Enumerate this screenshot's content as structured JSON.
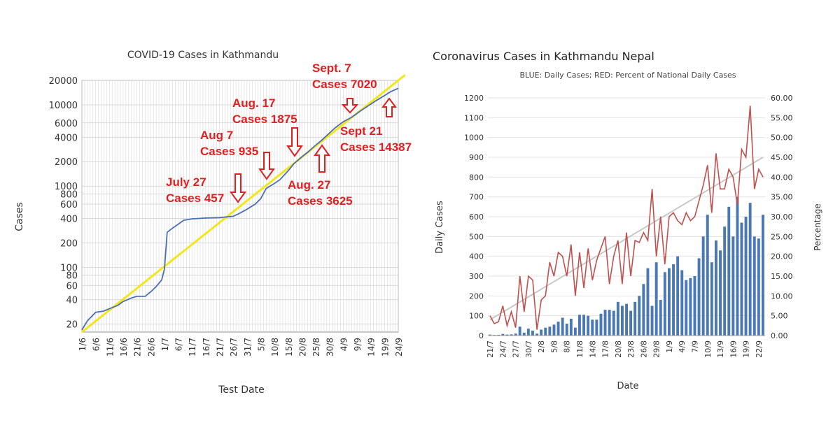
{
  "chart_data": [
    {
      "type": "line",
      "title": "COVID-19 Cases in Kathmandu",
      "xlabel": "Test Date",
      "ylabel": "Cases",
      "y_scale": "log",
      "ylim": [
        16,
        20000
      ],
      "y_ticks": [
        20,
        40,
        60,
        80,
        100,
        200,
        400,
        600,
        800,
        1000,
        2000,
        4000,
        6000,
        10000,
        20000
      ],
      "x_tick_labels": [
        "1/6",
        "6/6",
        "11/6",
        "16/6",
        "21/6",
        "26/6",
        "1/7",
        "6/7",
        "11/7",
        "16/7",
        "21/7",
        "26/7",
        "31/7",
        "5/8",
        "10/8",
        "15/8",
        "20/8",
        "25/8",
        "30/8",
        "4/9",
        "9/9",
        "14/9",
        "19/9",
        "24/9"
      ],
      "grid": true,
      "series": [
        {
          "color": "#4a6fb5",
          "x": [
            "1/6",
            "3/6",
            "6/6",
            "9/6",
            "11/6",
            "14/6",
            "16/6",
            "19/6",
            "21/6",
            "24/6",
            "26/6",
            "28/6",
            "30/6",
            "1/7",
            "2/7",
            "4/7",
            "6/7",
            "8/7",
            "11/7",
            "16/7",
            "21/7",
            "26/7",
            "28/7",
            "31/7",
            "3/8",
            "5/8",
            "7/8",
            "10/8",
            "12/8",
            "15/8",
            "17/8",
            "20/8",
            "22/8",
            "25/8",
            "27/8",
            "30/8",
            "1/9",
            "4/9",
            "7/9",
            "10/9",
            "13/9",
            "16/9",
            "19/9",
            "21/9",
            "24/9"
          ],
          "values": [
            17,
            22,
            28,
            29,
            31,
            34,
            38,
            42,
            44,
            44,
            50,
            58,
            70,
            95,
            270,
            305,
            340,
            380,
            395,
            405,
            410,
            425,
            457,
            520,
            600,
            700,
            935,
            1080,
            1200,
            1550,
            1875,
            2300,
            2600,
            3200,
            3625,
            4500,
            5200,
            6200,
            7020,
            8300,
            9700,
            11300,
            13000,
            14387,
            16000
          ]
        },
        {
          "color": "#f3e61a",
          "x": [
            "1/6",
            "24/9"
          ],
          "values": [
            16,
            20000
          ]
        }
      ],
      "annotations": [
        {
          "date": "July 27",
          "cases": "Cases 457",
          "direction": "down"
        },
        {
          "date": "Aug 7",
          "cases": "Cases 935",
          "direction": "down"
        },
        {
          "date": "Aug. 17",
          "cases": "Cases 1875",
          "direction": "down"
        },
        {
          "date": "Aug. 27",
          "cases": "Cases 3625",
          "direction": "up"
        },
        {
          "date": "Sept. 7",
          "cases": "Cases 7020",
          "direction": "down"
        },
        {
          "date": "Sept 21",
          "cases": "Cases 14387",
          "direction": "up"
        }
      ]
    },
    {
      "type": "bar+line",
      "title": "Coronavirus Cases in Kathmandu Nepal",
      "subtitle": "BLUE: Daily Cases; RED: Percent of National Daily Cases",
      "xlabel": "Date",
      "ylabel": "Daily Cases",
      "y2label": "Percentage",
      "ylim": [
        0,
        1200
      ],
      "y_ticks": [
        0,
        100,
        200,
        300,
        400,
        500,
        600,
        700,
        800,
        900,
        1000,
        1100,
        1200
      ],
      "y2lim": [
        0,
        60
      ],
      "y2_ticks": [
        "0.00",
        "5.00",
        "10.00",
        "15.00",
        "20.00",
        "25.00",
        "30.00",
        "35.00",
        "40.00",
        "45.00",
        "50.00",
        "55.00",
        "60.00"
      ],
      "x_tick_labels": [
        "21/7",
        "24/7",
        "27/7",
        "30/7",
        "2/8",
        "5/8",
        "8/8",
        "11/8",
        "14/8",
        "17/8",
        "20/8",
        "23/8",
        "26/8",
        "29/8",
        "1/9",
        "4/9",
        "7/9",
        "10/9",
        "13/9",
        "16/9",
        "19/9",
        "22/9"
      ],
      "x_tick_start": "21/7",
      "x_tick_step_days": 3,
      "series": [
        {
          "color": "#4a78b5",
          "start_date": "21/7",
          "values": [
            5,
            3,
            4,
            8,
            5,
            6,
            10,
            45,
            15,
            35,
            25,
            10,
            30,
            40,
            45,
            55,
            70,
            90,
            60,
            85,
            40,
            105,
            105,
            100,
            80,
            80,
            110,
            130,
            130,
            125,
            170,
            150,
            160,
            125,
            170,
            200,
            260,
            340,
            150,
            370,
            180,
            320,
            340,
            360,
            400,
            330,
            280,
            290,
            300,
            390,
            500,
            610,
            370,
            480,
            430,
            550,
            650,
            500,
            700,
            570,
            600,
            670,
            500,
            490,
            610
          ]
        },
        {
          "color": "#c0504d",
          "start_date": "21/7",
          "values": [
            5,
            3,
            3.5,
            7.5,
            2.5,
            6,
            2,
            15,
            6,
            15,
            14,
            1.5,
            9,
            10,
            18.5,
            15,
            21,
            20,
            15,
            23,
            10,
            21,
            12,
            22,
            14,
            19,
            22,
            25,
            13,
            20,
            24,
            13,
            26,
            15,
            24,
            23.5,
            26,
            24,
            37,
            20,
            30,
            18,
            30,
            31,
            29,
            28,
            31,
            29,
            30,
            34,
            38,
            43,
            31,
            46,
            37,
            37,
            42,
            40,
            33,
            47,
            45,
            58,
            37,
            42,
            40
          ]
        },
        {
          "color": "#bbbbbb",
          "start_date": "21/7",
          "values": [
            4,
            45
          ]
        }
      ]
    }
  ]
}
